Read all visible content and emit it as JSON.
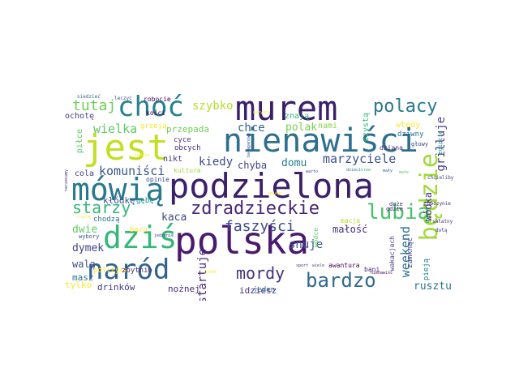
{
  "words": [
    {
      "text": "polska",
      "color": "#4a1a6e"
    },
    {
      "text": "podzielona",
      "color": "#3b1f6b"
    },
    {
      "text": "murem",
      "color": "#3b1f6b"
    },
    {
      "text": "nienawiści",
      "color": "#2e6f8e"
    },
    {
      "text": "jest",
      "color": "#c2df23"
    },
    {
      "text": "mówią",
      "color": "#2a788e"
    },
    {
      "text": "dziś",
      "color": "#35b779"
    },
    {
      "text": "będzie",
      "color": "#a0da39"
    },
    {
      "text": "choć",
      "color": "#26828e"
    },
    {
      "text": "naród",
      "color": "#33638d"
    },
    {
      "text": "zdradzieckie",
      "color": "#482677"
    },
    {
      "text": "polacy",
      "color": "#2a788e"
    },
    {
      "text": "lubią",
      "color": "#4ac16d"
    },
    {
      "text": "bardzo",
      "color": "#31688e"
    },
    {
      "text": "mordy",
      "color": "#46327e"
    },
    {
      "text": "faszyści",
      "color": "#3e4989"
    },
    {
      "text": "starzy",
      "color": "#35b779"
    },
    {
      "text": "tutaj",
      "color": "#6ece58"
    },
    {
      "text": "komuniści",
      "color": "#38588c"
    },
    {
      "text": "szybko",
      "color": "#b5de2b"
    },
    {
      "text": "wielka",
      "color": "#5ec962"
    },
    {
      "text": "chce",
      "color": "#33638d"
    },
    {
      "text": "polak",
      "color": "#7ad151"
    },
    {
      "text": "nami",
      "color": "#86d549"
    },
    {
      "text": "marzyciele",
      "color": "#3b528b"
    },
    {
      "text": "kiedy",
      "color": "#3e4989"
    },
    {
      "text": "domu",
      "color": "#277f8e"
    },
    {
      "text": "chyba",
      "color": "#414487"
    },
    {
      "text": "weekend",
      "color": "#2c728e"
    },
    {
      "text": "grilluje",
      "color": "#453882"
    },
    {
      "text": "wódka",
      "color": "#443983"
    },
    {
      "text": "małość",
      "color": "#472d7b"
    },
    {
      "text": "snuje",
      "color": "#3b528b"
    },
    {
      "text": "rusztu",
      "color": "#2c728e"
    },
    {
      "text": "startuje",
      "color": "#482878"
    },
    {
      "text": "kaca",
      "color": "#3e4989"
    },
    {
      "text": "kłódkę",
      "color": "#3b528b"
    },
    {
      "text": "dwie",
      "color": "#5ec962"
    },
    {
      "text": "dymek",
      "color": "#414487"
    },
    {
      "text": "walą",
      "color": "#3e4989"
    },
    {
      "text": "masz",
      "color": "#2c728e"
    },
    {
      "text": "tylko",
      "color": "#fde725"
    },
    {
      "text": "drinków",
      "color": "#443983"
    },
    {
      "text": "nożnej",
      "color": "#482878"
    },
    {
      "text": "idziesz",
      "color": "#46327e"
    },
    {
      "text": "jeden",
      "color": "#31688e"
    },
    {
      "text": "awantura",
      "color": "#440154"
    },
    {
      "text": "bani",
      "color": "#472d7b"
    },
    {
      "text": "wakacjach",
      "color": "#433e85"
    },
    {
      "text": "zamknąć",
      "color": "#3e4989"
    },
    {
      "text": "pieją",
      "color": "#277f8e"
    },
    {
      "text": "przepada",
      "color": "#6ece58"
    },
    {
      "text": "grzeją",
      "color": "#fde725"
    },
    {
      "text": "znają",
      "color": "#35b779"
    },
    {
      "text": "cyce",
      "color": "#453882"
    },
    {
      "text": "obcych",
      "color": "#482878"
    },
    {
      "text": "nikt",
      "color": "#46327e"
    },
    {
      "text": "kultura",
      "color": "#a0da39"
    },
    {
      "text": "opinie",
      "color": "#3e4989"
    },
    {
      "text": "cola",
      "color": "#414487"
    },
    {
      "text": "gębę",
      "color": "#21918c"
    },
    {
      "text": "piłce",
      "color": "#5ec962"
    },
    {
      "text": "chodzą",
      "color": "#2c728e"
    },
    {
      "text": "wybory",
      "color": "#3b528b"
    },
    {
      "text": "baru",
      "color": "#fde725"
    },
    {
      "text": "polityce",
      "color": "#fde725"
    },
    {
      "text": "zbytnio",
      "color": "#472d7b"
    },
    {
      "text": "ochotę",
      "color": "#433e85"
    },
    {
      "text": "robocie",
      "color": "#440154"
    },
    {
      "text": "kości",
      "color": "#440154"
    },
    {
      "text": "leczyć",
      "color": "#3b528b"
    },
    {
      "text": "siedzieć",
      "color": "#31688e"
    },
    {
      "text": "czystą",
      "color": "#35b779"
    },
    {
      "text": "wtedy",
      "color": "#fde725"
    },
    {
      "text": "dziwny",
      "color": "#2c728e"
    },
    {
      "text": "egipcie",
      "color": "#21918c"
    },
    {
      "text": "głowy",
      "color": "#414487"
    },
    {
      "text": "dziana",
      "color": "#46327e"
    },
    {
      "text": "gdzie",
      "color": "#472d7b"
    },
    {
      "text": "duże",
      "color": "#482878"
    },
    {
      "text": "macja",
      "color": "#b5de2b"
    },
    {
      "text": "wódce",
      "color": "#5ec962"
    },
    {
      "text": "chcieliby",
      "color": "#433e85"
    },
    {
      "text": "obozynie",
      "color": "#482878"
    },
    {
      "text": "sałatny",
      "color": "#472d7b"
    },
    {
      "text": "dołą",
      "color": "#3e4989"
    },
    {
      "text": "narzekamy",
      "color": "#46327e"
    },
    {
      "text": "bałaganowe",
      "color": "#3b528b"
    },
    {
      "text": "nienawiść",
      "color": "#440154"
    },
    {
      "text": "zbiegi",
      "color": "#fde725"
    },
    {
      "text": "ozdob",
      "color": "#fde725"
    },
    {
      "text": "mały",
      "color": "#31688e"
    },
    {
      "text": "warto",
      "color": "#3e4989"
    },
    {
      "text": "dzieci",
      "color": "#2c728e"
    },
    {
      "text": "krew",
      "color": "#35b779"
    },
    {
      "text": "małe",
      "color": "#5ec962"
    },
    {
      "text": "trochę",
      "color": "#fde725"
    },
    {
      "text": "sport",
      "color": "#46327e"
    },
    {
      "text": "wiele",
      "color": "#3e4989"
    },
    {
      "text": "jedzenie",
      "color": "#443983"
    },
    {
      "text": "ludzie",
      "color": "#fde725"
    },
    {
      "text": "wszyscy",
      "color": "#fde725"
    }
  ]
}
